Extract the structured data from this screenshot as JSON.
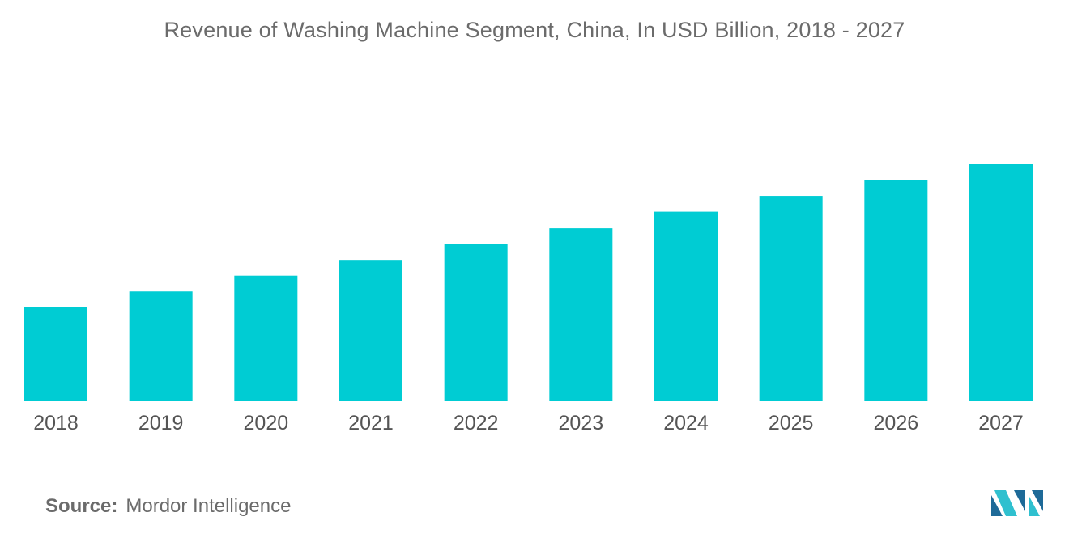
{
  "chart_data": {
    "type": "bar",
    "title": "Revenue of Washing Machine Segment, China, In USD Billion, 2018 - 2027",
    "categories": [
      "2018",
      "2019",
      "2020",
      "2021",
      "2022",
      "2023",
      "2024",
      "2025",
      "2026",
      "2027"
    ],
    "values": [
      11.9,
      13.9,
      15.9,
      17.9,
      19.9,
      21.9,
      24.0,
      26.0,
      28.0,
      30.0
    ],
    "xlabel": "",
    "ylabel": "",
    "ylim": [
      0,
      30
    ],
    "grid": false,
    "legend": "none",
    "bar_color": "#00ccd3"
  },
  "source": {
    "label": "Source:",
    "text": "Mordor Intelligence"
  },
  "logo": {
    "icon": "mordor-intelligence-logo-icon",
    "colors": [
      "#1e6a98",
      "#2fc0cf"
    ]
  }
}
